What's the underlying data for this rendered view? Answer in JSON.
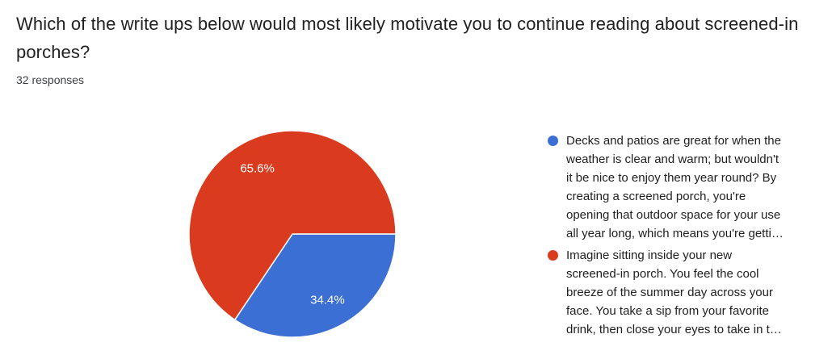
{
  "chart_data": {
    "type": "pie",
    "title": "Which of the write ups below would most likely motivate you to continue reading about screened-in porches?",
    "subtitle": "32 responses",
    "total_responses": 32,
    "legend_position": "right",
    "start_angle_deg": 0,
    "direction": "clockwise",
    "slice_label_color": "#ffffff",
    "slices": [
      {
        "legend_text": "Decks and patios are great for when the weather is clear and warm; but wouldn't it be nice to enjoy them year round? By creating a screened porch, you're opening that outdoor space for your use all year long, which means you're getti…",
        "pct": 34.4,
        "value_label": "34.4%",
        "color": "#3b6fd3"
      },
      {
        "legend_text": "Imagine sitting inside your new screened-in porch. You feel the cool breeze of the summer day across your face. You take a sip from your favorite drink, then close your eyes to take in t…",
        "pct": 65.6,
        "value_label": "65.6%",
        "color": "#da3b1e"
      }
    ]
  },
  "colors": {
    "background": "#ffffff",
    "title_text": "#212121",
    "secondary_text": "#3c4043"
  }
}
